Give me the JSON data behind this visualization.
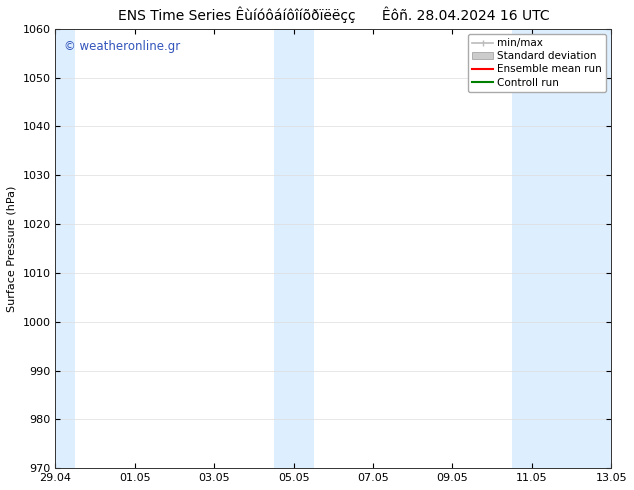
{
  "title_left": "ENS Time Series Êùíóôáíôîíõðïëëçç",
  "title_right": "Êôñ. 28.04.2024 16 UTC",
  "ylabel": "Surface Pressure (hPa)",
  "ylim": [
    970,
    1060
  ],
  "yticks": [
    970,
    980,
    990,
    1000,
    1010,
    1020,
    1030,
    1040,
    1050,
    1060
  ],
  "xtick_labels": [
    "29.04",
    "01.05",
    "03.05",
    "05.05",
    "07.05",
    "09.05",
    "11.05",
    "13.05"
  ],
  "xtick_positions": [
    0,
    2,
    4,
    6,
    8,
    10,
    12,
    14
  ],
  "xlim": [
    0,
    14
  ],
  "shaded_regions": [
    {
      "x_start": -0.1,
      "x_end": 0.5,
      "color": "#ddeeff"
    },
    {
      "x_start": 5.5,
      "x_end": 6.5,
      "color": "#ddeeff"
    },
    {
      "x_start": 11.5,
      "x_end": 14.1,
      "color": "#ddeeff"
    }
  ],
  "watermark": "© weatheronline.gr",
  "watermark_color": "#3355bb",
  "legend_items": [
    {
      "label": "min/max",
      "color": "#bbbbbb",
      "style": "minmax"
    },
    {
      "label": "Standard deviation",
      "color": "#cccccc",
      "style": "band"
    },
    {
      "label": "Ensemble mean run",
      "color": "red",
      "style": "line"
    },
    {
      "label": "Controll run",
      "color": "green",
      "style": "line"
    }
  ],
  "background_color": "#ffffff",
  "plot_background": "#ffffff",
  "shade_color": "#ddeeff",
  "title_fontsize": 10,
  "axis_fontsize": 8,
  "tick_fontsize": 8,
  "legend_fontsize": 7.5
}
